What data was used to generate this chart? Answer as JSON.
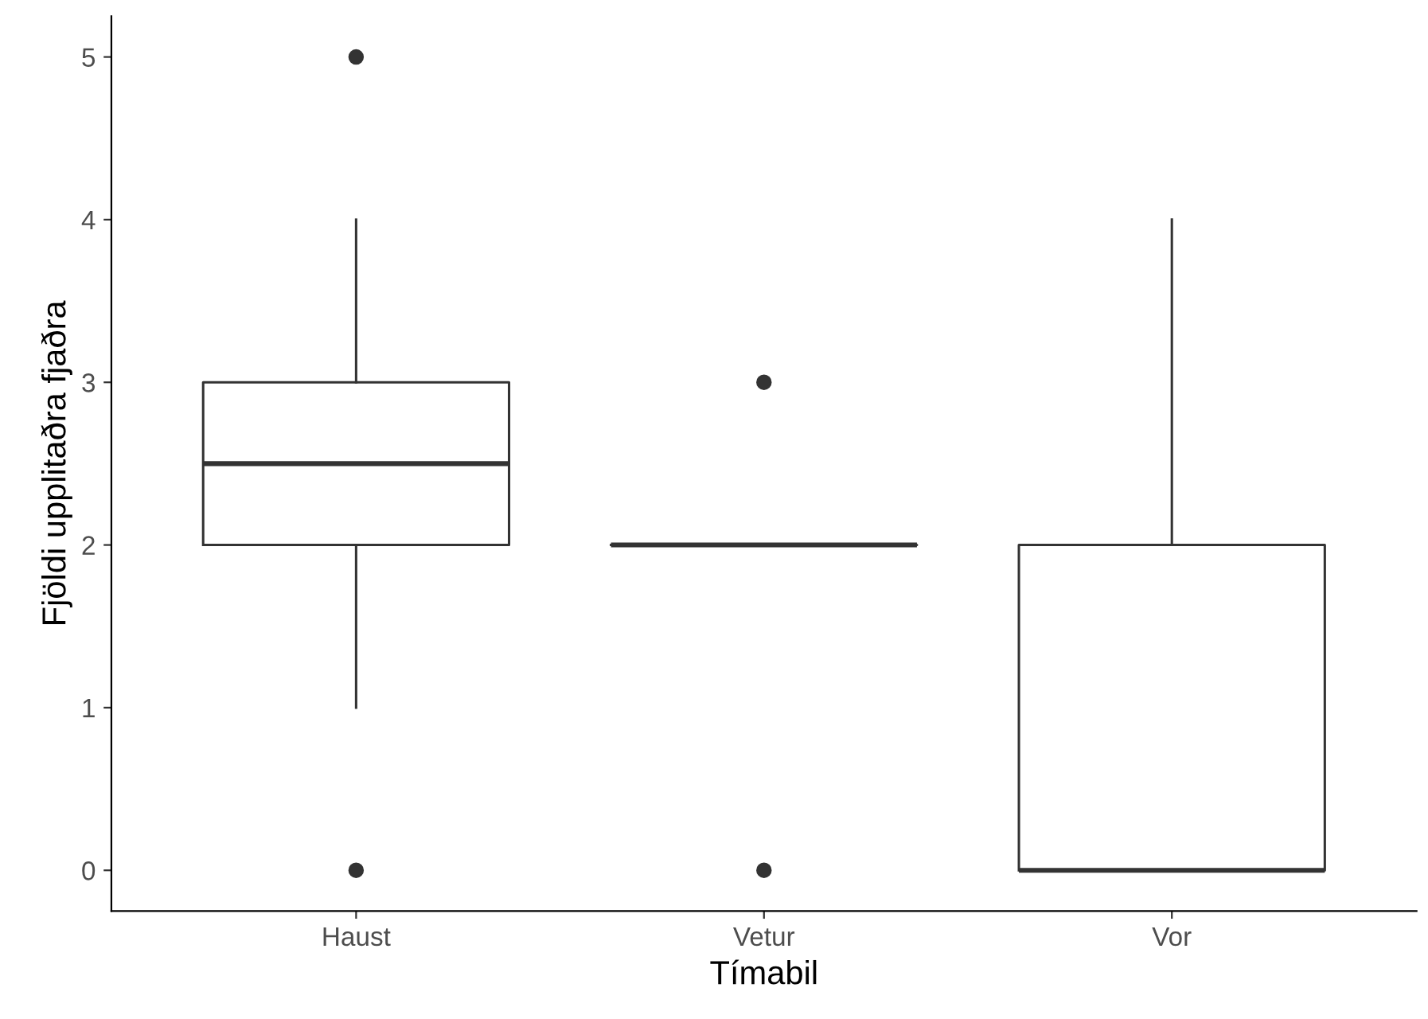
{
  "chart_data": {
    "type": "box",
    "xlabel": "Tímabil",
    "ylabel": "Fjöldi upplitaðra fjaðra",
    "categories": [
      "Haust",
      "Vetur",
      "Vor"
    ],
    "boxes": [
      {
        "low": 1,
        "q1": 2,
        "median": 2.5,
        "q3": 3,
        "high": 4,
        "outliers": [
          0,
          5
        ]
      },
      {
        "low": 2,
        "q1": 2,
        "median": 2,
        "q3": 2,
        "high": 2,
        "outliers": [
          0,
          3
        ]
      },
      {
        "low": 0,
        "q1": 0,
        "median": 0,
        "q3": 2,
        "high": 4
      }
    ],
    "color": "#333333",
    "ylim": [
      -0.25,
      5.25
    ],
    "yticks": [
      0,
      1,
      2,
      3,
      4,
      5
    ]
  }
}
